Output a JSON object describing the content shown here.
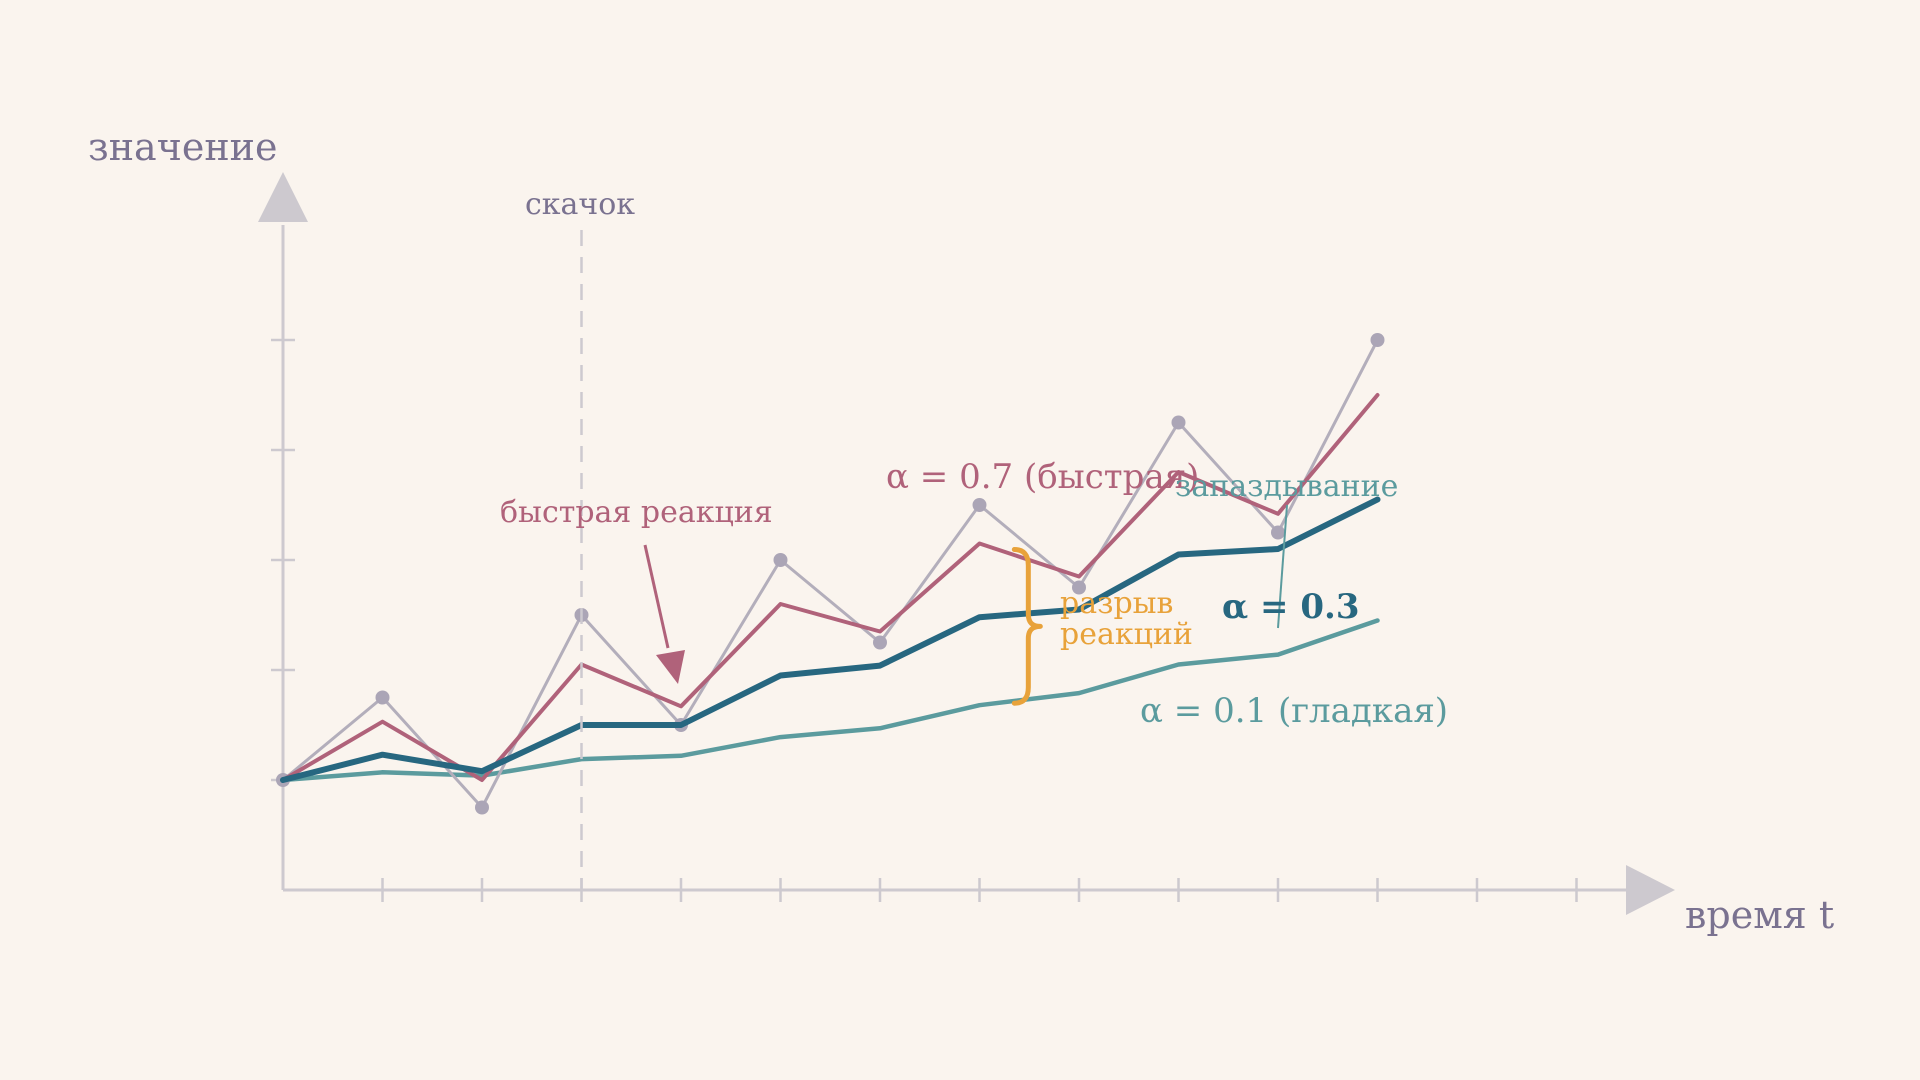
{
  "chart_data": {
    "type": "line",
    "xlabel": "время t",
    "ylabel": "значение",
    "x": [
      0,
      1,
      2,
      3,
      4,
      5,
      6,
      7,
      8,
      9,
      10,
      11
    ],
    "xlim": [
      0,
      13
    ],
    "ylim": [
      0,
      6
    ],
    "series": [
      {
        "name": "",
        "role": "raw",
        "color": "#b3aebb",
        "values": [
          1.0,
          1.75,
          0.75,
          2.5,
          1.5,
          3.0,
          2.25,
          3.5,
          2.75,
          4.25,
          3.25,
          5.0
        ]
      },
      {
        "name": "α = 0.7 (быстрая)",
        "role": "fast",
        "color": "#b0627a",
        "values": [
          1.0,
          1.53,
          1.0,
          2.05,
          1.67,
          2.6,
          2.35,
          3.15,
          2.85,
          3.8,
          3.42,
          4.5
        ]
      },
      {
        "name": "α = 0.3",
        "role": "medium",
        "color": "#276780",
        "values": [
          1.0,
          1.23,
          1.08,
          1.5,
          1.5,
          1.95,
          2.04,
          2.48,
          2.55,
          3.05,
          3.1,
          3.55
        ]
      },
      {
        "name": "α = 0.1 (гладкая)",
        "role": "smooth",
        "color": "#5b9b9e",
        "values": [
          1.0,
          1.07,
          1.04,
          1.19,
          1.22,
          1.39,
          1.47,
          1.68,
          1.79,
          2.05,
          2.14,
          2.45
        ]
      }
    ],
    "annotations": {
      "jump_label": "скачок",
      "jump_x": 3,
      "fast_reaction_label": "быстрая реакция",
      "lag_label": "запаздывание",
      "gap_label_line1": "разрыв",
      "gap_label_line2": "реакций",
      "gap_x": 7.35
    },
    "colors": {
      "axis": "#cdc9cf",
      "axis_label": "#7a7290",
      "gap": "#e8a23a",
      "background": "#faf4ee"
    }
  }
}
